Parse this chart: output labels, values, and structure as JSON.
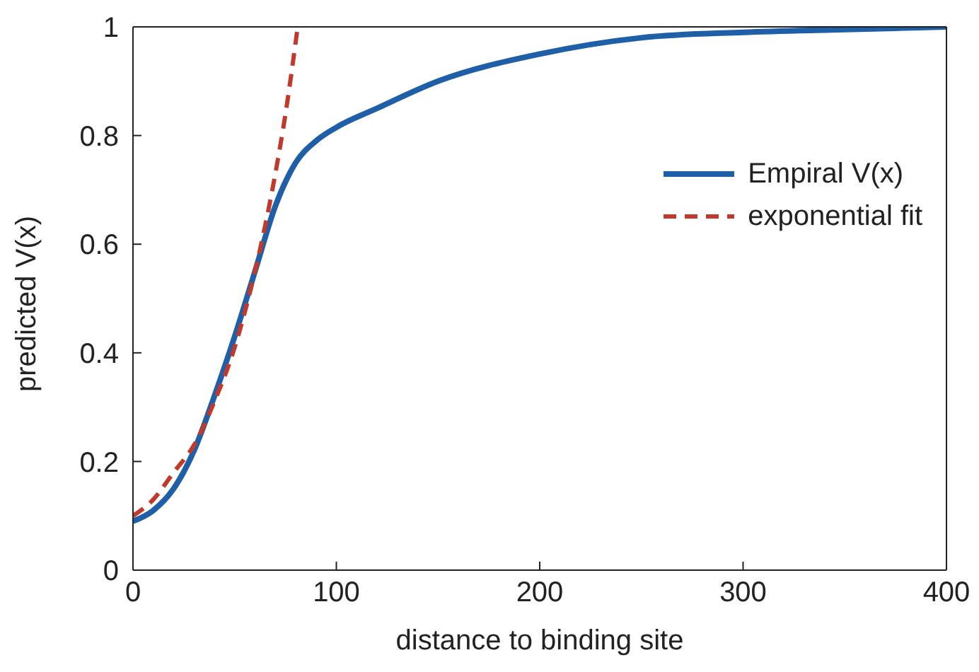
{
  "chart_data": {
    "type": "line",
    "xlabel": "distance to binding site",
    "ylabel": "predicted V(x)",
    "xlim": [
      0,
      400
    ],
    "xticks": [
      0,
      100,
      200,
      300,
      400
    ],
    "ylim": [
      0,
      1
    ],
    "yticks": [
      0,
      0.2,
      0.4,
      0.6,
      0.8,
      1
    ],
    "grid": false,
    "legend": "top right",
    "marker": "none",
    "series": [
      {
        "name": "Empiral V(x)",
        "color": "#1f5fa8",
        "line_style": "solid",
        "x": [
          0,
          10,
          20,
          30,
          40,
          50,
          60,
          70,
          80,
          90,
          100,
          120,
          150,
          200,
          250,
          300,
          350,
          400
        ],
        "values": [
          0.09,
          0.11,
          0.15,
          0.22,
          0.32,
          0.43,
          0.55,
          0.67,
          0.75,
          0.79,
          0.815,
          0.85,
          0.9,
          0.95,
          0.98,
          0.99,
          0.995,
          1.0
        ]
      },
      {
        "name": "exponential fit",
        "color": "#c0392b",
        "line_style": "dashed",
        "x": [
          0,
          10,
          20,
          30,
          40,
          50,
          60,
          70,
          75,
          81
        ],
        "values": [
          0.1,
          0.13,
          0.18,
          0.23,
          0.31,
          0.41,
          0.55,
          0.73,
          0.84,
          1.0
        ]
      }
    ]
  }
}
